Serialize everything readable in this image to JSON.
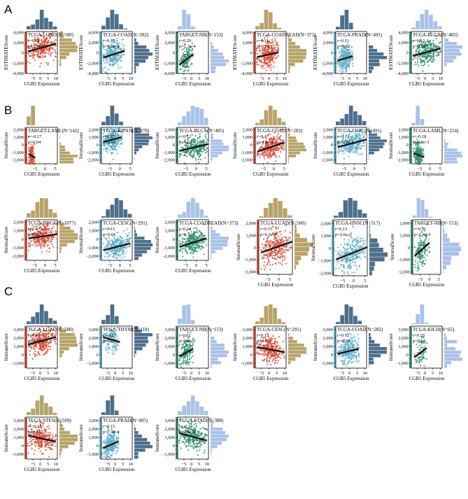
{
  "panel_labels": [
    "A",
    "B",
    "C"
  ],
  "colors": {
    "sand": "#b8a46a",
    "slate": "#4d6f8c",
    "sky": "#a9c2e8",
    "red": "#d94b36",
    "cyan": "#5aaec8",
    "teal": "#2f8f74",
    "regression": "#111111",
    "ci_band": "#d9d9d9"
  },
  "chart_data": [
    {
      "panel": "A",
      "type": "scatter",
      "title": "TCGA-LUAD(N=500)",
      "r_text": "r=0.31",
      "p_text": "p=2.2e-12",
      "xlabel": "CGB5 Expression",
      "ylabel": "ESTIMATEScore",
      "xticks": [
        -5,
        0,
        5,
        10
      ],
      "yticks": [
        -4000,
        -2000,
        0,
        2000,
        4000
      ],
      "xlim": [
        -9,
        11
      ],
      "ylim": [
        -4000,
        4200
      ],
      "n": 500,
      "line": {
        "x": [
          -8,
          10
        ],
        "y": [
          300,
          1800
        ]
      },
      "point_color": "#d94b36",
      "top_hist_color": "#4d6f8c",
      "right_hist_color": "#b8a46a"
    },
    {
      "panel": "A",
      "type": "scatter",
      "title": "TCGA-COAD(N=282)",
      "r_text": "r=0.16",
      "p_text": "p=8.9e-3",
      "xlabel": "CGB5 Expression",
      "ylabel": "ESTIMATEScore",
      "xticks": [
        -5,
        0,
        5,
        10
      ],
      "yticks": [
        -4000,
        -2000,
        0,
        2000,
        4000
      ],
      "xlim": [
        -9,
        11
      ],
      "ylim": [
        -4000,
        4200
      ],
      "n": 282,
      "line": {
        "x": [
          -8,
          6
        ],
        "y": [
          -900,
          400
        ]
      },
      "point_color": "#5aaec8",
      "top_hist_color": "#4d6f8c",
      "right_hist_color": "#4d6f8c"
    },
    {
      "panel": "A",
      "type": "scatter",
      "title": "TARGET-NB(N=153)",
      "r_text": "r=0.29",
      "p_text": "p=2.3e-4",
      "xlabel": "CGB5 Expression",
      "ylabel": "ESTIMATEScore",
      "xticks": [
        -5,
        0,
        5,
        10
      ],
      "yticks": [
        -4000,
        -2000,
        0,
        2000,
        4000
      ],
      "xlim": [
        -9,
        11
      ],
      "ylim": [
        -4000,
        4200
      ],
      "n": 153,
      "line": {
        "x": [
          -8,
          1
        ],
        "y": [
          -2300,
          -300
        ]
      },
      "point_color": "#2f8f74",
      "top_hist_color": "#a9c2e8",
      "right_hist_color": "#a9c2e8"
    },
    {
      "panel": "A",
      "type": "scatter",
      "title": "TCGA-COADREAD(N=373)",
      "r_text": "r=0.11",
      "p_text": "p=0.03",
      "xlabel": "CGB5 Expression",
      "ylabel": "ESTIMATEScore",
      "xticks": [
        -5,
        0,
        5,
        10
      ],
      "yticks": [
        -4000,
        -2000,
        0,
        2000,
        4000
      ],
      "xlim": [
        -9,
        11
      ],
      "ylim": [
        -4000,
        4200
      ],
      "n": 373,
      "line": {
        "x": [
          -8,
          6
        ],
        "y": [
          -800,
          100
        ]
      },
      "point_color": "#d94b36",
      "top_hist_color": "#b8a46a",
      "right_hist_color": "#b8a46a"
    },
    {
      "panel": "A",
      "type": "scatter",
      "title": "TCGA-PRAD(N=495)",
      "r_text": "r=0.11",
      "p_text": "p=0.02",
      "xlabel": "CGB5 Expression",
      "ylabel": "ESTIMATEScore",
      "xticks": [
        -5,
        0,
        5,
        10
      ],
      "yticks": [
        -4000,
        -2000,
        0,
        2000,
        4000
      ],
      "xlim": [
        -9,
        11
      ],
      "ylim": [
        -4000,
        4200
      ],
      "n": 495,
      "line": {
        "x": [
          -8,
          2
        ],
        "y": [
          -1500,
          -600
        ]
      },
      "point_color": "#5aaec8",
      "top_hist_color": "#4d6f8c",
      "right_hist_color": "#4d6f8c"
    },
    {
      "panel": "A",
      "type": "scatter",
      "title": "TCGA-BLCA(N=405)",
      "r_text": "r=0.12",
      "p_text": "p=0.01",
      "xlabel": "CGB5 Expression",
      "ylabel": "ESTIMATEScore",
      "xticks": [
        -5,
        0,
        5,
        10
      ],
      "yticks": [
        -4000,
        -2000,
        0,
        2000,
        4000
      ],
      "xlim": [
        -9,
        11
      ],
      "ylim": [
        -4000,
        4200
      ],
      "n": 405,
      "line": {
        "x": [
          -8,
          10
        ],
        "y": [
          -600,
          900
        ]
      },
      "point_color": "#2f8f74",
      "top_hist_color": "#a9c2e8",
      "right_hist_color": "#a9c2e8"
    },
    {
      "panel": "B",
      "type": "scatter",
      "title": "TARGET-LAML(N=142)",
      "r_text": "r=-0.17",
      "p_text": "p=0.04",
      "xlabel": "CGB5 Expression",
      "ylabel": "StromalScore",
      "xticks": [
        -5,
        0,
        5
      ],
      "yticks": [
        -2000,
        -1000,
        0,
        1000,
        2000
      ],
      "xlim": [
        -9,
        6
      ],
      "ylim": [
        -2500,
        2300
      ],
      "n": 142,
      "line": {
        "x": [
          -8,
          -5
        ],
        "y": [
          -1200,
          -1700
        ]
      },
      "point_color": "#d94b36",
      "top_hist_color": "#b8a46a",
      "right_hist_color": "#b8a46a"
    },
    {
      "panel": "B",
      "type": "scatter",
      "title": "TCGA-KIPAN(N=878)",
      "r_text": "r=0.07",
      "p_text": "p=0.04",
      "xlabel": "CGB5 Expression",
      "ylabel": "StromalScore",
      "xticks": [
        -5,
        0,
        5
      ],
      "yticks": [
        -2000,
        -1000,
        0,
        1000,
        2000
      ],
      "xlim": [
        -9,
        6
      ],
      "ylim": [
        -2500,
        2300
      ],
      "n": 878,
      "line": {
        "x": [
          -8,
          1
        ],
        "y": [
          400,
          1000
        ]
      },
      "point_color": "#5aaec8",
      "top_hist_color": "#4d6f8c",
      "right_hist_color": "#4d6f8c"
    },
    {
      "panel": "B",
      "type": "scatter",
      "title": "TCGA-BLCA(N=405)",
      "r_text": "r=0.12",
      "p_text": "p=0.02",
      "xlabel": "CGB5 Expression",
      "ylabel": "StromalScore",
      "xticks": [
        -5,
        0,
        5
      ],
      "yticks": [
        -2000,
        -1000,
        0,
        1000,
        2000
      ],
      "xlim": [
        -9,
        6
      ],
      "ylim": [
        -2500,
        2300
      ],
      "n": 405,
      "line": {
        "x": [
          -8,
          6
        ],
        "y": [
          -800,
          100
        ]
      },
      "point_color": "#2f8f74",
      "top_hist_color": "#a9c2e8",
      "right_hist_color": "#a9c2e8"
    },
    {
      "panel": "B",
      "type": "scatter",
      "title": "TCGA-COAD(N=282)",
      "r_text": "r=0.17",
      "p_text": "p=4.0e-3",
      "xlabel": "CGB5 Expression",
      "ylabel": "StromalScore",
      "xticks": [
        -5,
        0,
        5
      ],
      "yticks": [
        -2000,
        -1000,
        0,
        1000,
        2000
      ],
      "xlim": [
        -9,
        6
      ],
      "ylim": [
        -2500,
        2300
      ],
      "n": 282,
      "line": {
        "x": [
          -8,
          5
        ],
        "y": [
          -900,
          300
        ]
      },
      "point_color": "#d94b36",
      "top_hist_color": "#b8a46a",
      "right_hist_color": "#b8a46a"
    },
    {
      "panel": "B",
      "type": "scatter",
      "title": "TCGA-LUSC(N=491)",
      "r_text": "r=0.12",
      "p_text": "p=6.1e-3",
      "xlabel": "CGB5 Expression",
      "ylabel": "StromalScore",
      "xticks": [
        -5,
        0,
        5
      ],
      "yticks": [
        -2000,
        -1000,
        0,
        1000,
        2000
      ],
      "xlim": [
        -9,
        6
      ],
      "ylim": [
        -2500,
        2300
      ],
      "n": 491,
      "line": {
        "x": [
          -8,
          6
        ],
        "y": [
          -300,
          700
        ]
      },
      "point_color": "#5aaec8",
      "top_hist_color": "#4d6f8c",
      "right_hist_color": "#4d6f8c"
    },
    {
      "panel": "B",
      "type": "scatter",
      "title": "TCGA-LAML(N=214)",
      "r_text": "r=-0.18",
      "p_text": "p=8.8e-3",
      "xlabel": "CGB5 Expression",
      "ylabel": "StromalScore",
      "xticks": [
        -5,
        0,
        5
      ],
      "yticks": [
        -2000,
        -1000,
        0,
        1000,
        2000
      ],
      "xlim": [
        -9,
        6
      ],
      "ylim": [
        -2500,
        2300
      ],
      "n": 214,
      "line": {
        "x": [
          -8,
          -3
        ],
        "y": [
          -1100,
          -1600
        ]
      },
      "point_color": "#2f8f74",
      "top_hist_color": "#a9c2e8",
      "right_hist_color": "#a9c2e8"
    },
    {
      "panel": "B",
      "type": "scatter",
      "title": "TCGA-BRCA(N=1077)",
      "r_text": "r=0.07",
      "p_text": "p=0.02",
      "xlabel": "CGB5 Expression",
      "ylabel": "StromalScore",
      "xticks": [
        -5,
        0,
        5
      ],
      "yticks": [
        -2000,
        -1000,
        0,
        1000,
        2000
      ],
      "xlim": [
        -9,
        6
      ],
      "ylim": [
        -2500,
        2300
      ],
      "n": 1077,
      "line": {
        "x": [
          -8,
          6
        ],
        "y": [
          100,
          600
        ]
      },
      "point_color": "#d94b36",
      "top_hist_color": "#b8a46a",
      "right_hist_color": "#b8a46a"
    },
    {
      "panel": "B",
      "type": "scatter",
      "title": "TCGA-CESC(N=291)",
      "r_text": "r=0.15",
      "p_text": "p=0.01",
      "xlabel": "CGB5 Expression",
      "ylabel": "StromalScore",
      "xticks": [
        -5,
        0,
        5
      ],
      "yticks": [
        -2000,
        -1000,
        0,
        1000,
        2000
      ],
      "xlim": [
        -9,
        6
      ],
      "ylim": [
        -2500,
        2300
      ],
      "n": 291,
      "line": {
        "x": [
          -8,
          5
        ],
        "y": [
          -1300,
          -500
        ]
      },
      "point_color": "#5aaec8",
      "top_hist_color": "#4d6f8c",
      "right_hist_color": "#4d6f8c"
    },
    {
      "panel": "B",
      "type": "scatter",
      "title": "TCGA-COADREAD(N=373)",
      "r_text": "r=0.14",
      "p_text": "p=8.5e-3",
      "xlabel": "CGB5 Expression",
      "ylabel": "StromalScore",
      "xticks": [
        -5,
        0,
        5
      ],
      "yticks": [
        -2000,
        -1000,
        0,
        1000,
        2000
      ],
      "xlim": [
        -9,
        6
      ],
      "ylim": [
        -2500,
        2300
      ],
      "n": 373,
      "line": {
        "x": [
          -8,
          5
        ],
        "y": [
          -900,
          100
        ]
      },
      "point_color": "#2f8f74",
      "top_hist_color": "#a9c2e8",
      "right_hist_color": "#a9c2e8"
    },
    {
      "panel": "B",
      "type": "scatter",
      "title": "TCGA-LUAD(N=500)",
      "r_text": "r=0.15",
      "p_text": "p=6.5e-4",
      "xlabel": "CGB5 Expression",
      "ylabel": "StromalScore",
      "xticks": [
        -5,
        0,
        5
      ],
      "yticks": [
        -2000,
        -1000,
        0,
        1000,
        2000
      ],
      "xlim": [
        -9,
        6
      ],
      "ylim": [
        -2200,
        2300
      ],
      "n": 500,
      "line": {
        "x": [
          -8,
          6
        ],
        "y": [
          -400,
          500
        ]
      },
      "point_color": "#d94b36",
      "top_hist_color": "#b8a46a",
      "right_hist_color": "#b8a46a"
    },
    {
      "panel": "B",
      "type": "scatter",
      "title": "TCGA-HNSC(N=517)",
      "r_text": "r=0.13",
      "p_text": "p=2.6e-3",
      "xlabel": "CGB5 Expression",
      "ylabel": "StromalScore",
      "xticks": [
        -5,
        0,
        5
      ],
      "yticks": [
        -2000,
        -1000,
        0,
        1000,
        2000
      ],
      "xlim": [
        -9,
        6
      ],
      "ylim": [
        -2200,
        2300
      ],
      "n": 517,
      "line": {
        "x": [
          -8,
          6
        ],
        "y": [
          -900,
          100
        ]
      },
      "point_color": "#5aaec8",
      "top_hist_color": "#4d6f8c",
      "right_hist_color": "#4d6f8c"
    },
    {
      "panel": "B",
      "type": "scatter",
      "title": "TARGET-NB(N=153)",
      "r_text": "r=0.31",
      "p_text": "p=1.4e-3",
      "xlabel": "CGB5 Expression",
      "ylabel": "StromalScore",
      "xticks": [
        -5,
        0,
        5
      ],
      "yticks": [
        -2000,
        -1000,
        0,
        1000,
        2000
      ],
      "xlim": [
        -9,
        6
      ],
      "ylim": [
        -2200,
        2300
      ],
      "n": 153,
      "line": {
        "x": [
          -8,
          0
        ],
        "y": [
          -700,
          400
        ]
      },
      "point_color": "#2f8f74",
      "top_hist_color": "#a9c2e8",
      "right_hist_color": "#a9c2e8"
    },
    {
      "panel": "C",
      "type": "scatter",
      "title": "TCGA-LUAD(N=500)",
      "r_text": "r=0.34",
      "p_text": "p=4.6e-13",
      "xlabel": "CGB5 Expression",
      "ylabel": "ImmuneScore",
      "xticks": [
        -5,
        0,
        5,
        10
      ],
      "yticks": [
        -1000,
        0,
        1000,
        2000,
        3000
      ],
      "xlim": [
        -9,
        11
      ],
      "ylim": [
        -1600,
        3400
      ],
      "n": 500,
      "line": {
        "x": [
          -8,
          10
        ],
        "y": [
          1200,
          2100
        ]
      },
      "point_color": "#d94b36",
      "top_hist_color": "#4d6f8c",
      "right_hist_color": "#b8a46a"
    },
    {
      "panel": "C",
      "type": "scatter",
      "title": "TCGA-THYM(N=118)",
      "r_text": "r=-0.23",
      "p_text": "p=0.01",
      "xlabel": "CGB5 Expression",
      "ylabel": "ImmuneScore",
      "xticks": [
        -5,
        0,
        5,
        10
      ],
      "yticks": [
        -1000,
        0,
        1000,
        2000,
        3000
      ],
      "xlim": [
        -9,
        11
      ],
      "ylim": [
        -1600,
        3400
      ],
      "n": 118,
      "line": {
        "x": [
          -8,
          3
        ],
        "y": [
          2100,
          1500
        ]
      },
      "point_color": "#5aaec8",
      "top_hist_color": "#4d6f8c",
      "right_hist_color": "#4d6f8c"
    },
    {
      "panel": "C",
      "type": "scatter",
      "title": "TARGET-NB(N=153)",
      "r_text": "r=0.21",
      "p_text": "p=8.8e-3",
      "xlabel": "CGB5 Expression",
      "ylabel": "ImmuneScore",
      "xticks": [
        -5,
        0,
        5,
        10
      ],
      "yticks": [
        -1000,
        0,
        1000,
        2000,
        3000
      ],
      "xlim": [
        -9,
        11
      ],
      "ylim": [
        -1600,
        3400
      ],
      "n": 153,
      "line": {
        "x": [
          -8,
          1
        ],
        "y": [
          -200,
          700
        ]
      },
      "point_color": "#2f8f74",
      "top_hist_color": "#a9c2e8",
      "right_hist_color": "#a9c2e8"
    },
    {
      "panel": "C",
      "type": "scatter",
      "title": "TCGA-CESC(N=291)",
      "r_text": "r=0.15",
      "p_text": "p=0.02",
      "xlabel": "CGB5 Expression",
      "ylabel": "ImmuneScore",
      "xticks": [
        -5,
        0,
        5,
        10
      ],
      "yticks": [
        -1000,
        0,
        1000,
        2000,
        3000
      ],
      "xlim": [
        -9,
        11
      ],
      "ylim": [
        -1600,
        3400
      ],
      "n": 291,
      "line": {
        "x": [
          -8,
          10
        ],
        "y": [
          900,
          300
        ]
      },
      "point_color": "#d94b36",
      "top_hist_color": "#b8a46a",
      "right_hist_color": "#b8a46a"
    },
    {
      "panel": "C",
      "type": "scatter",
      "title": "TCGA-COAD(N=282)",
      "r_text": "r=0.12",
      "p_text": "p=0.04",
      "xlabel": "CGB5 Expression",
      "ylabel": "ImmuneScore",
      "xticks": [
        -5,
        0,
        5,
        10
      ],
      "yticks": [
        -1000,
        0,
        1000,
        2000,
        3000
      ],
      "xlim": [
        -9,
        11
      ],
      "ylim": [
        -1600,
        3400
      ],
      "n": 282,
      "line": {
        "x": [
          -8,
          6
        ],
        "y": [
          100,
          700
        ]
      },
      "point_color": "#5aaec8",
      "top_hist_color": "#4d6f8c",
      "right_hist_color": "#4d6f8c"
    },
    {
      "panel": "C",
      "type": "scatter",
      "title": "TCGA-KICH(N=65)",
      "r_text": "r=0.25",
      "p_text": "p=0.04",
      "xlabel": "CGB5 Expression",
      "ylabel": "ImmuneScore",
      "xticks": [
        -5,
        0,
        5,
        10
      ],
      "yticks": [
        -1000,
        0,
        1000,
        2000,
        3000
      ],
      "xlim": [
        -9,
        11
      ],
      "ylim": [
        -1600,
        3400
      ],
      "n": 65,
      "line": {
        "x": [
          -7,
          1
        ],
        "y": [
          -300,
          800
        ]
      },
      "point_color": "#2f8f74",
      "top_hist_color": "#a9c2e8",
      "right_hist_color": "#a9c2e8"
    },
    {
      "panel": "C",
      "type": "scatter",
      "title": "TCGA-STES(N=569)",
      "r_text": "r=-0.12",
      "p_text": "p=0.01",
      "xlabel": "CGB5 Expression",
      "ylabel": "ImmuneScore",
      "xticks": [
        -5,
        0,
        5,
        10
      ],
      "yticks": [
        -1000,
        0,
        1000,
        2000,
        3000
      ],
      "xlim": [
        -9,
        11
      ],
      "ylim": [
        -1600,
        3400
      ],
      "n": 569,
      "line": {
        "x": [
          -8,
          10
        ],
        "y": [
          1200,
          500
        ]
      },
      "point_color": "#d94b36",
      "top_hist_color": "#b8a46a",
      "right_hist_color": "#b8a46a"
    },
    {
      "panel": "C",
      "type": "scatter",
      "title": "TCGA-PRAD(N=495)",
      "r_text": "r=0.15",
      "p_text": "p=7.4e-4",
      "xlabel": "CGB5 Expression",
      "ylabel": "ImmuneScore",
      "xticks": [
        -5,
        0,
        5,
        10
      ],
      "yticks": [
        -1000,
        0,
        1000,
        2000,
        3000
      ],
      "xlim": [
        -9,
        11
      ],
      "ylim": [
        -1600,
        3400
      ],
      "n": 495,
      "line": {
        "x": [
          -8,
          2
        ],
        "y": [
          -300,
          500
        ]
      },
      "point_color": "#5aaec8",
      "top_hist_color": "#4d6f8c",
      "right_hist_color": "#4d6f8c"
    },
    {
      "panel": "C",
      "type": "scatter",
      "title": "TCGA-STAD(N=388)",
      "r_text": "r=-0.16",
      "p_text": "p=1.6e-3",
      "xlabel": "CGB5 Expression",
      "ylabel": "ImmuneScore",
      "xticks": [
        -5,
        0,
        5,
        10
      ],
      "yticks": [
        -1000,
        0,
        1000,
        2000,
        3000
      ],
      "xlim": [
        -9,
        11
      ],
      "ylim": [
        -1600,
        3400
      ],
      "n": 388,
      "line": {
        "x": [
          -8,
          10
        ],
        "y": [
          1500,
          600
        ]
      },
      "point_color": "#2f8f74",
      "top_hist_color": "#a9c2e8",
      "right_hist_color": "#a9c2e8"
    }
  ]
}
